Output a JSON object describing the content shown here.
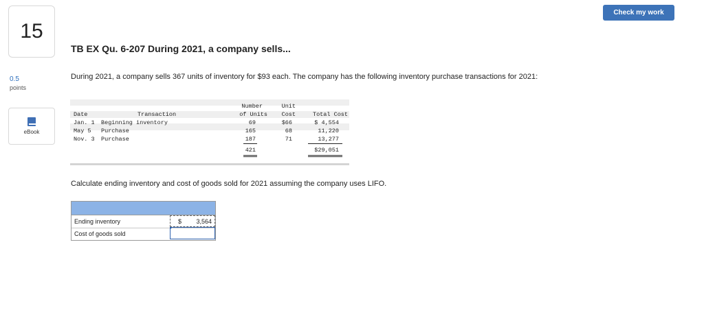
{
  "question": {
    "number": "15",
    "points_value": "0.5",
    "points_label": "points"
  },
  "sidebar": {
    "ebook_label": "eBook"
  },
  "header": {
    "check_button": "Check my work"
  },
  "title": "TB EX Qu. 6-207 During 2021, a company sells...",
  "paragraph1": "During 2021, a company sells 367 units of inventory for $93 each. The company has the following inventory purchase transactions for 2021:",
  "inventory_table": {
    "headers": {
      "date": "Date",
      "transaction": "Transaction",
      "units_line1": "Number",
      "units_line2": "of Units",
      "cost_line1": "Unit",
      "cost_line2": "Cost",
      "total": "Total Cost"
    },
    "rows": [
      {
        "date": "Jan. 1",
        "transaction": "Beginning inventory",
        "units": "69",
        "cost": "$66",
        "total": "$ 4,554"
      },
      {
        "date": "May 5",
        "transaction": "Purchase",
        "units": "165",
        "cost": "68",
        "total": "11,220"
      },
      {
        "date": "Nov. 3",
        "transaction": "Purchase",
        "units": "187",
        "cost": "71",
        "total": "13,277"
      }
    ],
    "totals": {
      "units": "421",
      "total": "$29,051"
    }
  },
  "paragraph2": "Calculate ending inventory and cost of goods sold for 2021 assuming the company uses LIFO.",
  "answer_table": {
    "rows": [
      {
        "label": "Ending inventory",
        "currency": "$",
        "value": "3,564"
      },
      {
        "label": "Cost of goods sold",
        "currency": "",
        "value": ""
      }
    ]
  }
}
